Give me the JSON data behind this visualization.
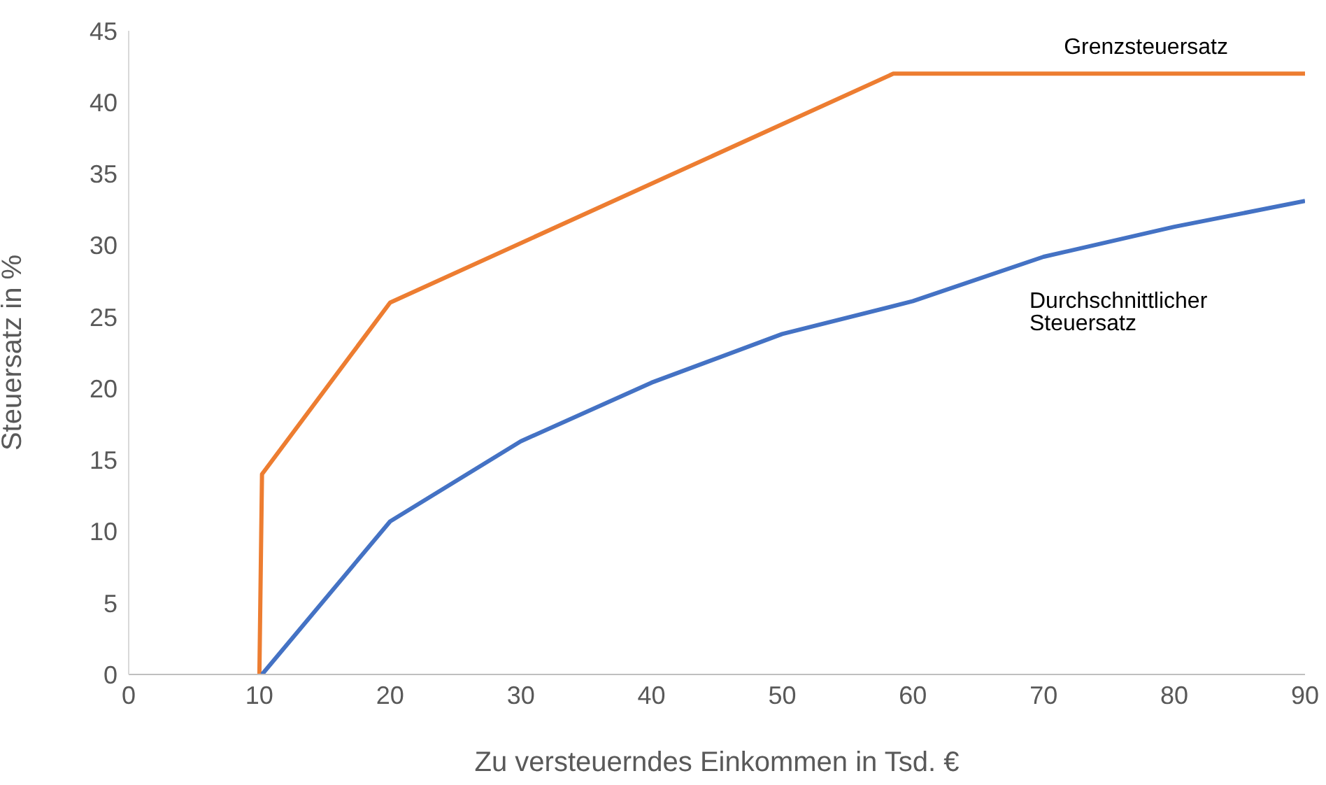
{
  "chart_data": {
    "type": "line",
    "xlabel": "Zu versteuerndes Einkommen in Tsd. €",
    "ylabel": "Steuersatz in %",
    "xlim": [
      0,
      90
    ],
    "xticks": [
      0,
      10,
      20,
      30,
      40,
      50,
      60,
      70,
      80,
      90
    ],
    "ylim": [
      0,
      45
    ],
    "yticks": [
      0,
      5,
      10,
      15,
      20,
      25,
      30,
      35,
      40,
      45
    ],
    "grid": false,
    "legend": false,
    "marker": "none",
    "line_style": "solid",
    "series": [
      {
        "name": "Grenzsteuersatz",
        "color": "#ed7d31",
        "x": [
          10,
          10.2,
          20,
          58.5,
          90
        ],
        "values": [
          0,
          14,
          26,
          42,
          42
        ]
      },
      {
        "name": "Durchschnittlicher Steuersatz",
        "color": "#4472c4",
        "x": [
          10.2,
          20,
          30,
          40,
          50,
          60,
          70,
          80,
          90
        ],
        "values": [
          0,
          10.7,
          16.3,
          20.4,
          23.8,
          26.1,
          29.2,
          31.3,
          33.1
        ]
      }
    ]
  }
}
